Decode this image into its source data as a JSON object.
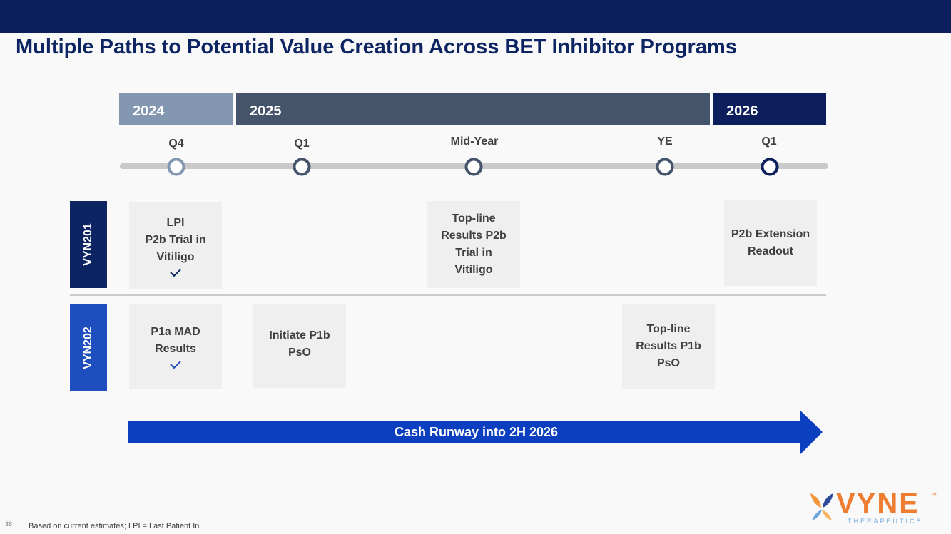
{
  "header": {
    "title": "Multiple Paths to Potential Value Creation Across BET Inhibitor Programs"
  },
  "years": [
    "2024",
    "2025",
    "2026"
  ],
  "milestones": [
    "Q4",
    "Q1",
    "Mid-Year",
    "YE",
    "Q1"
  ],
  "programs": [
    {
      "name": "VYN201",
      "events": [
        {
          "lines": [
            "LPI",
            "P2b Trial in",
            "Vitiligo"
          ]
        },
        {
          "lines": [
            "Top-line",
            "Results P2b",
            "Trial in",
            "Vitiligo"
          ]
        },
        {
          "lines": [
            "P2b Extension",
            "Readout"
          ]
        }
      ]
    },
    {
      "name": "VYN202",
      "events": [
        {
          "lines": [
            "P1a MAD",
            "Results"
          ]
        },
        {
          "lines": [
            "Initiate P1b",
            "PsO"
          ]
        },
        {
          "lines": [
            "Top-line",
            "Results P1b",
            "PsO"
          ]
        }
      ]
    }
  ],
  "runway": "Cash Runway into 2H 2026",
  "footer": {
    "page": "36",
    "note": "Based on current estimates; LPI = Last Patient In"
  },
  "logo": {
    "name": "VYNE",
    "tm": "™",
    "tagline": "THERAPEUTICS"
  }
}
